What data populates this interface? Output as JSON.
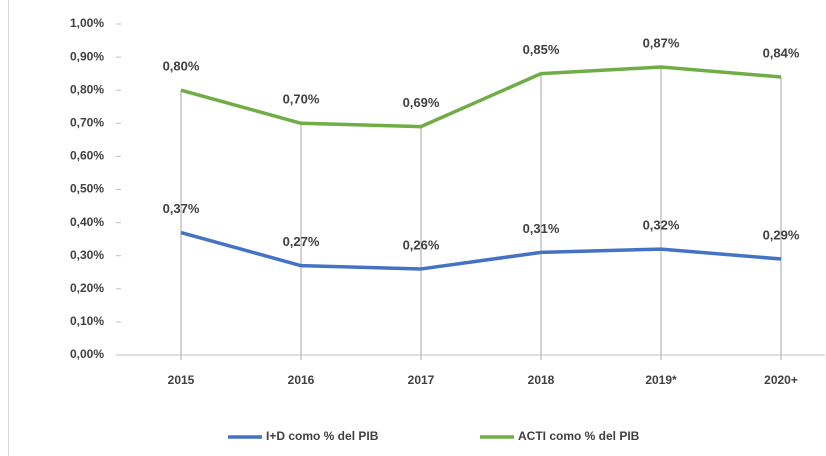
{
  "chart_data": {
    "type": "line",
    "categories": [
      "2015",
      "2016",
      "2017",
      "2018",
      "2019*",
      "2020+"
    ],
    "series": [
      {
        "name": "I+D como % del PIB",
        "color": "#4472c4",
        "values": [
          0.37,
          0.27,
          0.26,
          0.31,
          0.32,
          0.29
        ],
        "value_labels": [
          "0,37%",
          "0,27%",
          "0,26%",
          "0,31%",
          "0,32%",
          "0,29%"
        ]
      },
      {
        "name": "ACTI como % del PIB",
        "color": "#70ad47",
        "values": [
          0.8,
          0.7,
          0.69,
          0.85,
          0.87,
          0.84
        ],
        "value_labels": [
          "0,80%",
          "0,70%",
          "0,69%",
          "0,85%",
          "0,87%",
          "0,84%"
        ]
      }
    ],
    "ylim": [
      0,
      1
    ],
    "yticks": [
      {
        "value": 0,
        "label": "0,00%"
      },
      {
        "value": 0.1,
        "label": "0,10%"
      },
      {
        "value": 0.2,
        "label": "0,20%"
      },
      {
        "value": 0.3,
        "label": "0,30%"
      },
      {
        "value": 0.4,
        "label": "0,40%"
      },
      {
        "value": 0.5,
        "label": "0,50%"
      },
      {
        "value": 0.6,
        "label": "0,60%"
      },
      {
        "value": 0.7,
        "label": "0,70%"
      },
      {
        "value": 0.8,
        "label": "0,80%"
      },
      {
        "value": 0.9,
        "label": "0,90%"
      },
      {
        "value": 1,
        "label": "1,00%"
      }
    ],
    "legend": "bottom"
  }
}
